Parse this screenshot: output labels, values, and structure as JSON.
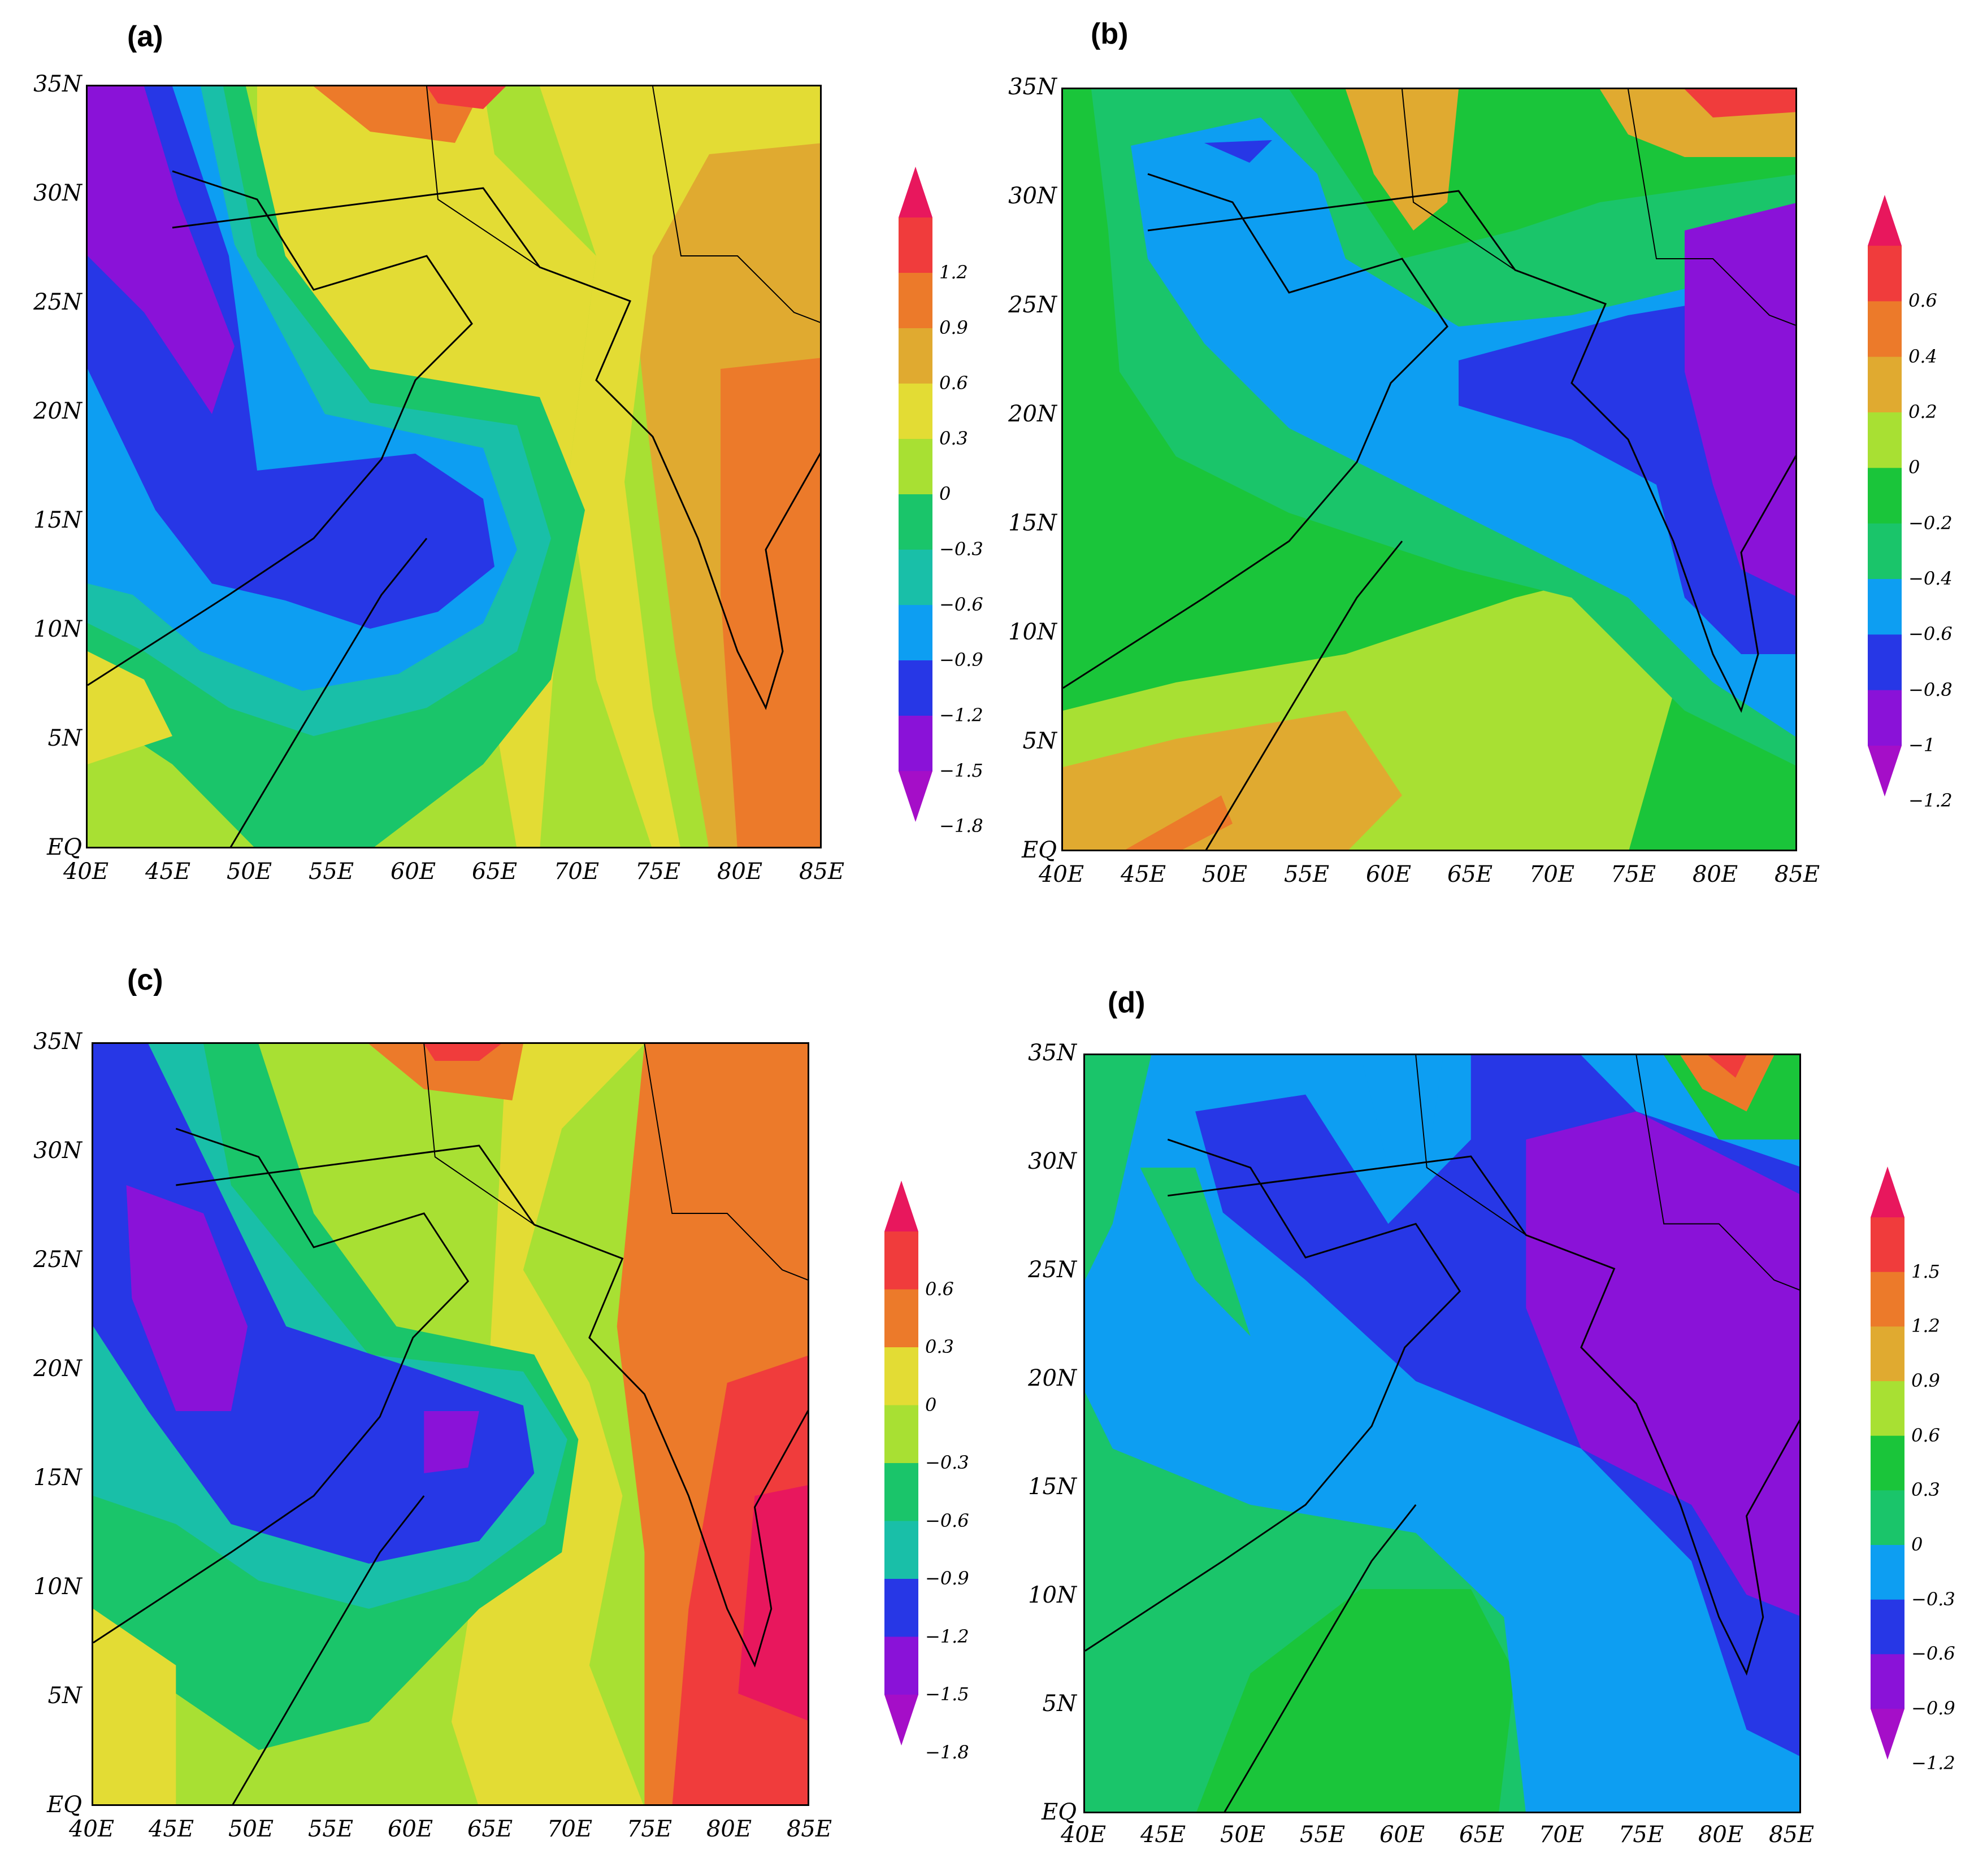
{
  "panels": [
    {
      "label": "(a)",
      "colorbar": {
        "levels": [
          "1.2",
          "0.9",
          "0.6",
          "0.3",
          "0",
          "−0.3",
          "−0.6",
          "−0.9",
          "−1.2",
          "−1.5",
          "−1.8"
        ],
        "colors": [
          "#e8175d",
          "#f03c3c",
          "#ec7a2a",
          "#e0aa30",
          "#e3dc34",
          "#a8e033",
          "#1ac56a",
          "#19bfa8",
          "#0d9ef2",
          "#2737e6",
          "#8a12d8",
          "#a50ec8"
        ]
      }
    },
    {
      "label": "(b)",
      "colorbar": {
        "levels": [
          "0.6",
          "0.4",
          "0.2",
          "0",
          "−0.2",
          "−0.4",
          "−0.6",
          "−0.8",
          "−1",
          "−1.2"
        ],
        "colors": [
          "#e8175d",
          "#f03c3c",
          "#ec7a2a",
          "#e0aa30",
          "#a8e033",
          "#1ac53a",
          "#1ac56a",
          "#0d9ef2",
          "#2737e6",
          "#8a12d8",
          "#a50ec8"
        ]
      }
    },
    {
      "label": "(c)",
      "colorbar": {
        "levels": [
          "0.6",
          "0.3",
          "0",
          "−0.3",
          "−0.6",
          "−0.9",
          "−1.2",
          "−1.5",
          "−1.8"
        ],
        "colors": [
          "#e8175d",
          "#f03c3c",
          "#ec7a2a",
          "#e3dc34",
          "#a8e033",
          "#1ac56a",
          "#19bfa8",
          "#2737e6",
          "#8a12d8",
          "#a50ec8"
        ]
      }
    },
    {
      "label": "(d)",
      "colorbar": {
        "levels": [
          "1.5",
          "1.2",
          "0.9",
          "0.6",
          "0.3",
          "0",
          "−0.3",
          "−0.6",
          "−0.9",
          "−1.2"
        ],
        "colors": [
          "#e8175d",
          "#f03c3c",
          "#ec7a2a",
          "#e0aa30",
          "#a8e033",
          "#1ac53a",
          "#1ac56a",
          "#0d9ef2",
          "#2737e6",
          "#8a12d8",
          "#a50ec8"
        ]
      }
    }
  ],
  "axes": {
    "lat_labels": [
      "35N",
      "30N",
      "25N",
      "20N",
      "15N",
      "10N",
      "5N",
      "EQ"
    ],
    "lon_labels": [
      "40E",
      "45E",
      "50E",
      "55E",
      "60E",
      "65E",
      "70E",
      "75E",
      "80E",
      "85E"
    ]
  }
}
